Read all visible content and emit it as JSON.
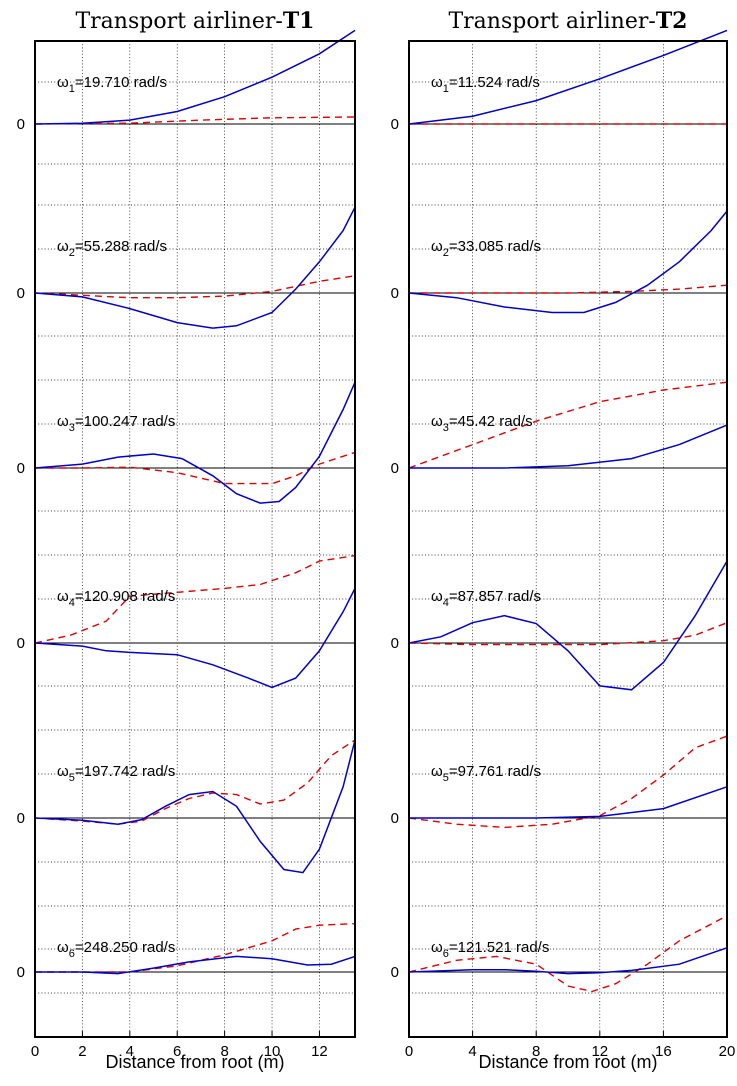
{
  "chart_data": [
    {
      "type": "line",
      "title_prefix": "Transport airliner-",
      "title_bold": "T1",
      "xlabel": "Distance from root (m)",
      "xlim": [
        0,
        13.5
      ],
      "xticks": [
        0,
        2,
        4,
        6,
        8,
        10,
        12
      ],
      "xticklabels": [
        "0",
        "2",
        "4",
        "6",
        "8",
        "10",
        "12"
      ],
      "zero_label": "0",
      "modes": [
        {
          "sym": "ω",
          "sub": "1",
          "value": "=19.710 rad/s",
          "bending": [
            [
              0,
              0
            ],
            [
              2,
              0.01
            ],
            [
              4,
              0.05
            ],
            [
              6,
              0.16
            ],
            [
              8,
              0.35
            ],
            [
              10,
              0.6
            ],
            [
              12,
              0.9
            ],
            [
              13.5,
              1.2
            ]
          ],
          "torsion": [
            [
              0,
              0
            ],
            [
              4,
              0.01
            ],
            [
              7,
              0.05
            ],
            [
              10,
              0.08
            ],
            [
              13.5,
              0.09
            ]
          ]
        },
        {
          "sym": "ω",
          "sub": "2",
          "value": "=55.288 rad/s",
          "bending": [
            [
              0,
              0
            ],
            [
              2,
              -0.05
            ],
            [
              4,
              -0.2
            ],
            [
              6,
              -0.38
            ],
            [
              7.5,
              -0.45
            ],
            [
              8.5,
              -0.42
            ],
            [
              10,
              -0.25
            ],
            [
              11,
              0.05
            ],
            [
              12,
              0.4
            ],
            [
              13,
              0.8
            ],
            [
              13.5,
              1.1
            ]
          ],
          "torsion": [
            [
              0,
              0
            ],
            [
              2,
              -0.03
            ],
            [
              4,
              -0.06
            ],
            [
              6,
              -0.06
            ],
            [
              8,
              -0.04
            ],
            [
              10,
              0.02
            ],
            [
              12,
              0.15
            ],
            [
              13.5,
              0.22
            ]
          ]
        },
        {
          "sym": "ω",
          "sub": "3",
          "value": "=100.247 rad/s",
          "bending": [
            [
              0,
              0
            ],
            [
              2,
              0.05
            ],
            [
              3.5,
              0.14
            ],
            [
              5,
              0.18
            ],
            [
              6.2,
              0.12
            ],
            [
              7.5,
              -0.1
            ],
            [
              8.5,
              -0.33
            ],
            [
              9.5,
              -0.45
            ],
            [
              10.3,
              -0.43
            ],
            [
              11,
              -0.25
            ],
            [
              12,
              0.15
            ],
            [
              13,
              0.75
            ],
            [
              13.5,
              1.1
            ]
          ],
          "torsion": [
            [
              0,
              0
            ],
            [
              2,
              0
            ],
            [
              4,
              0.01
            ],
            [
              6,
              -0.06
            ],
            [
              8,
              -0.2
            ],
            [
              10,
              -0.2
            ],
            [
              11,
              -0.1
            ],
            [
              12,
              0.05
            ],
            [
              13,
              0.15
            ],
            [
              13.5,
              0.2
            ]
          ]
        },
        {
          "sym": "ω",
          "sub": "4",
          "value": "=120.908 rad/s",
          "bending": [
            [
              0,
              0
            ],
            [
              2,
              -0.04
            ],
            [
              3,
              -0.1
            ],
            [
              4,
              -0.12
            ],
            [
              6,
              -0.15
            ],
            [
              7.5,
              -0.28
            ],
            [
              9,
              -0.45
            ],
            [
              10,
              -0.57
            ],
            [
              11,
              -0.45
            ],
            [
              12,
              -0.1
            ],
            [
              13,
              0.4
            ],
            [
              13.5,
              0.7
            ]
          ],
          "torsion": [
            [
              0,
              0
            ],
            [
              1.5,
              0.1
            ],
            [
              3,
              0.28
            ],
            [
              4,
              0.6
            ],
            [
              6,
              0.65
            ],
            [
              8,
              0.7
            ],
            [
              9.5,
              0.75
            ],
            [
              11,
              0.9
            ],
            [
              12,
              1.05
            ],
            [
              13.5,
              1.12
            ]
          ]
        },
        {
          "sym": "ω",
          "sub": "5",
          "value": "=197.742 rad/s",
          "bending": [
            [
              0,
              0
            ],
            [
              2,
              -0.03
            ],
            [
              3.5,
              -0.08
            ],
            [
              4.5,
              -0.02
            ],
            [
              5.5,
              0.15
            ],
            [
              6.5,
              0.3
            ],
            [
              7.5,
              0.34
            ],
            [
              8.5,
              0.15
            ],
            [
              9.5,
              -0.3
            ],
            [
              10.5,
              -0.66
            ],
            [
              11.3,
              -0.7
            ],
            [
              12,
              -0.4
            ],
            [
              13,
              0.4
            ],
            [
              13.5,
              1
            ]
          ],
          "torsion": [
            [
              0,
              0
            ],
            [
              2,
              -0.04
            ],
            [
              3.5,
              -0.08
            ],
            [
              4.5,
              -0.04
            ],
            [
              5.5,
              0.12
            ],
            [
              6.5,
              0.25
            ],
            [
              7.5,
              0.32
            ],
            [
              8.5,
              0.3
            ],
            [
              9.5,
              0.18
            ],
            [
              10.5,
              0.23
            ],
            [
              11.5,
              0.45
            ],
            [
              12.5,
              0.8
            ],
            [
              13.5,
              1
            ]
          ]
        },
        {
          "sym": "ω",
          "sub": "6",
          "value": "=248.250 rad/s",
          "bending": [
            [
              0,
              0
            ],
            [
              2,
              0
            ],
            [
              3.5,
              -0.02
            ],
            [
              5,
              0.05
            ],
            [
              6.5,
              0.13
            ],
            [
              8.5,
              0.2
            ],
            [
              10,
              0.17
            ],
            [
              11.5,
              0.09
            ],
            [
              12.5,
              0.1
            ],
            [
              13.5,
              0.2
            ]
          ],
          "torsion": [
            [
              0,
              0
            ],
            [
              2,
              0
            ],
            [
              4,
              0
            ],
            [
              6,
              0.08
            ],
            [
              8,
              0.22
            ],
            [
              10,
              0.4
            ],
            [
              11,
              0.55
            ],
            [
              12,
              0.6
            ],
            [
              13.5,
              0.62
            ]
          ]
        }
      ]
    },
    {
      "type": "line",
      "title_prefix": "Transport airliner-",
      "title_bold": "T2",
      "xlabel": "Distance from root (m)",
      "xlim": [
        0,
        20
      ],
      "xticks": [
        0,
        4,
        8,
        12,
        16,
        20
      ],
      "xticklabels": [
        "0",
        "4",
        "8",
        "12",
        "16",
        "20"
      ],
      "zero_label": "0",
      "modes": [
        {
          "sym": "ω",
          "sub": "1",
          "value": "=11.524 rad/s",
          "bending": [
            [
              0,
              0
            ],
            [
              4,
              0.1
            ],
            [
              8,
              0.3
            ],
            [
              12,
              0.58
            ],
            [
              16,
              0.88
            ],
            [
              20,
              1.2
            ]
          ],
          "torsion": [
            [
              0,
              0
            ],
            [
              20,
              0
            ]
          ]
        },
        {
          "sym": "ω",
          "sub": "2",
          "value": "=33.085 rad/s",
          "bending": [
            [
              0,
              0
            ],
            [
              3,
              -0.06
            ],
            [
              6,
              -0.18
            ],
            [
              9,
              -0.25
            ],
            [
              11,
              -0.25
            ],
            [
              13,
              -0.12
            ],
            [
              15,
              0.1
            ],
            [
              17,
              0.4
            ],
            [
              19,
              0.8
            ],
            [
              20,
              1.05
            ]
          ],
          "torsion": [
            [
              0,
              0
            ],
            [
              10,
              0
            ],
            [
              14,
              0.02
            ],
            [
              17,
              0.05
            ],
            [
              20,
              0.1
            ]
          ]
        },
        {
          "sym": "ω",
          "sub": "3",
          "value": "=45.42 rad/s",
          "bending": [
            [
              0,
              0
            ],
            [
              6,
              0
            ],
            [
              10,
              0.03
            ],
            [
              14,
              0.12
            ],
            [
              17,
              0.3
            ],
            [
              20,
              0.55
            ]
          ],
          "torsion": [
            [
              0,
              0
            ],
            [
              4,
              0.3
            ],
            [
              8,
              0.6
            ],
            [
              12,
              0.85
            ],
            [
              16,
              1
            ],
            [
              20,
              1.1
            ]
          ]
        },
        {
          "sym": "ω",
          "sub": "4",
          "value": "=87.857 rad/s",
          "bending": [
            [
              0,
              0
            ],
            [
              2,
              0.08
            ],
            [
              4,
              0.26
            ],
            [
              6,
              0.35
            ],
            [
              8,
              0.25
            ],
            [
              10,
              -0.1
            ],
            [
              12,
              -0.55
            ],
            [
              14,
              -0.6
            ],
            [
              16,
              -0.25
            ],
            [
              18,
              0.35
            ],
            [
              20,
              1.05
            ]
          ],
          "torsion": [
            [
              0,
              0
            ],
            [
              4,
              -0.02
            ],
            [
              8,
              -0.02
            ],
            [
              12,
              -0.02
            ],
            [
              16,
              0.03
            ],
            [
              18,
              0.1
            ],
            [
              20,
              0.26
            ]
          ]
        },
        {
          "sym": "ω",
          "sub": "5",
          "value": "=97.761 rad/s",
          "bending": [
            [
              0,
              0
            ],
            [
              4,
              0
            ],
            [
              8,
              0
            ],
            [
              12,
              0.02
            ],
            [
              16,
              0.12
            ],
            [
              20,
              0.4
            ]
          ],
          "torsion": [
            [
              0,
              0
            ],
            [
              3,
              -0.08
            ],
            [
              6,
              -0.12
            ],
            [
              9,
              -0.08
            ],
            [
              12,
              0.03
            ],
            [
              14,
              0.25
            ],
            [
              16,
              0.55
            ],
            [
              18,
              0.9
            ],
            [
              20,
              1.05
            ]
          ]
        },
        {
          "sym": "ω",
          "sub": "6",
          "value": "=121.521 rad/s",
          "bending": [
            [
              0,
              0
            ],
            [
              4,
              0.03
            ],
            [
              6,
              0.03
            ],
            [
              8,
              0.01
            ],
            [
              10,
              -0.02
            ],
            [
              12,
              -0.01
            ],
            [
              14,
              0.02
            ],
            [
              17,
              0.1
            ],
            [
              20,
              0.31
            ]
          ],
          "torsion": [
            [
              0,
              0
            ],
            [
              3,
              0.15
            ],
            [
              5.5,
              0.2
            ],
            [
              8,
              0.1
            ],
            [
              10,
              -0.18
            ],
            [
              11.5,
              -0.25
            ],
            [
              13,
              -0.15
            ],
            [
              15,
              0.1
            ],
            [
              17,
              0.4
            ],
            [
              20,
              0.72
            ]
          ]
        }
      ]
    }
  ]
}
